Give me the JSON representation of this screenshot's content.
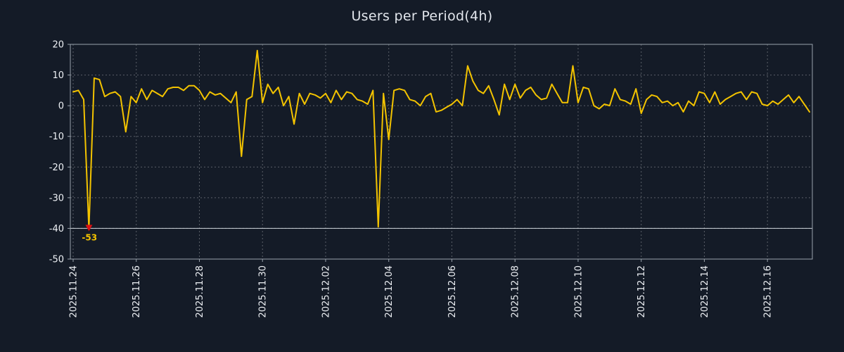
{
  "title": "Users per Period(4h)",
  "colors": {
    "background": "#141b27",
    "line": "#f3c300",
    "grid": "#ffffff",
    "frame": "#9aa3ad",
    "tick_text": "#eef1f5",
    "minline": "#ced4da",
    "marker": "#dd1111",
    "annotation": "#f3c300"
  },
  "chart_data": {
    "type": "line",
    "title": "Users per Period(4h)",
    "xlabel": "",
    "ylabel": "",
    "ylim": [
      -50,
      20
    ],
    "grid": true,
    "legend": false,
    "period_hours": 4,
    "y_ticks": [
      20,
      10,
      0,
      -10,
      -20,
      -30,
      -40,
      -50
    ],
    "x_ticks": [
      {
        "index": 0,
        "label": "2025.11.24"
      },
      {
        "index": 12,
        "label": "2025.11.26"
      },
      {
        "index": 24,
        "label": "2025.11.28"
      },
      {
        "index": 36,
        "label": "2025.11.30"
      },
      {
        "index": 48,
        "label": "2025.12.02"
      },
      {
        "index": 60,
        "label": "2025.12.04"
      },
      {
        "index": 72,
        "label": "2025.12.06"
      },
      {
        "index": 84,
        "label": "2025.12.08"
      },
      {
        "index": 96,
        "label": "2025.12.10"
      },
      {
        "index": 108,
        "label": "2025.12.12"
      },
      {
        "index": 120,
        "label": "2025.12.14"
      },
      {
        "index": 132,
        "label": "2025.12.16"
      }
    ],
    "clip_min": -40,
    "min_annotation": {
      "index": 3,
      "value": -53,
      "label": "-53"
    },
    "values": [
      4.5,
      5,
      2,
      -53,
      9,
      8.5,
      3,
      4,
      4.5,
      3,
      -8.5,
      3,
      1,
      5.5,
      2,
      5,
      4,
      3,
      5.5,
      6,
      6,
      5,
      6.5,
      6.5,
      5,
      2,
      4.5,
      3.5,
      4,
      2.5,
      1,
      4.5,
      -16.5,
      2,
      3,
      18,
      1,
      7,
      4,
      6,
      0,
      3,
      -6,
      4,
      0.5,
      4,
      3.5,
      2.5,
      4,
      1,
      5,
      2,
      4.5,
      4,
      2,
      1.5,
      0.5,
      5,
      -39.5,
      4,
      -11,
      5,
      5.5,
      5,
      2,
      1.5,
      0,
      3,
      4,
      -2,
      -1.5,
      -0.5,
      0.5,
      2,
      0,
      13,
      8,
      5,
      4,
      6.5,
      2,
      -3,
      7,
      2,
      7,
      2.5,
      5,
      6,
      3.5,
      2,
      2.5,
      7,
      4,
      1,
      1,
      13,
      1,
      6,
      5.5,
      0,
      -1,
      0.5,
      0,
      5.5,
      2,
      1.5,
      0.5,
      5.5,
      -2.5,
      2,
      3.5,
      3,
      1,
      1.5,
      0,
      1,
      -2,
      1.5,
      0,
      4.5,
      4,
      1,
      4.5,
      0.5,
      2,
      3,
      4,
      4.5,
      2,
      4.5,
      4,
      0.5,
      0,
      1.5,
      0.5,
      2,
      3.5,
      1,
      3,
      0.5,
      -2
    ]
  }
}
